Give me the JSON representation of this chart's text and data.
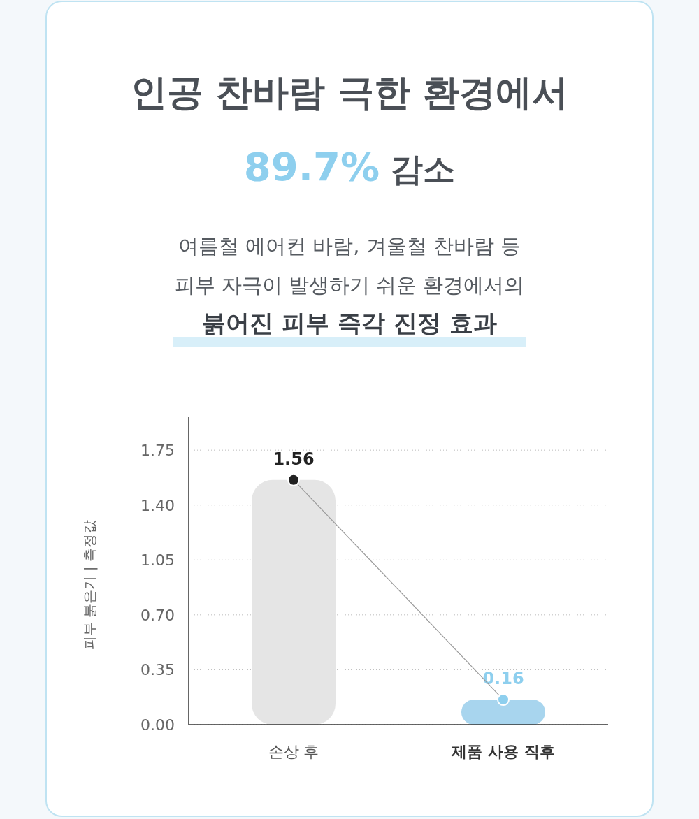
{
  "chart_data": {
    "type": "bar",
    "title": "인공 찬바람 극한 환경에서",
    "subtitle": "89.7% 감소",
    "annotations": [
      "여름철 에어컨 바람, 겨울철 찬바람 등",
      "피부 자극이 발생하기 쉬운 환경에서의",
      "붉어진 피부 즉각 진정 효과"
    ],
    "ylabel": "피부 붉은기 | 측정값",
    "categories": [
      "손상 후",
      "제품 사용 직후"
    ],
    "series": [
      {
        "colors": [
          "#e5e5e5",
          "#a8d5ee"
        ],
        "values": [
          1.56,
          0.16
        ],
        "value_labels": [
          "1.56",
          "0.16"
        ]
      },
      {
        "type": "line",
        "color": "#999999",
        "colors": [
          "#222222",
          "#8ecfee"
        ],
        "marker": "circle",
        "values": [
          1.56,
          0.16
        ]
      }
    ],
    "ylim": [
      0,
      1.96
    ],
    "yticks": [
      {
        "value": 0,
        "label": "0.00"
      },
      {
        "value": 0.35,
        "label": "0.35"
      },
      {
        "value": 0.7,
        "label": "0.70"
      },
      {
        "value": 1.05,
        "label": "1.05"
      },
      {
        "value": 1.4,
        "label": "1.40"
      },
      {
        "value": 1.75,
        "label": "1.75"
      }
    ],
    "grid": "y"
  }
}
